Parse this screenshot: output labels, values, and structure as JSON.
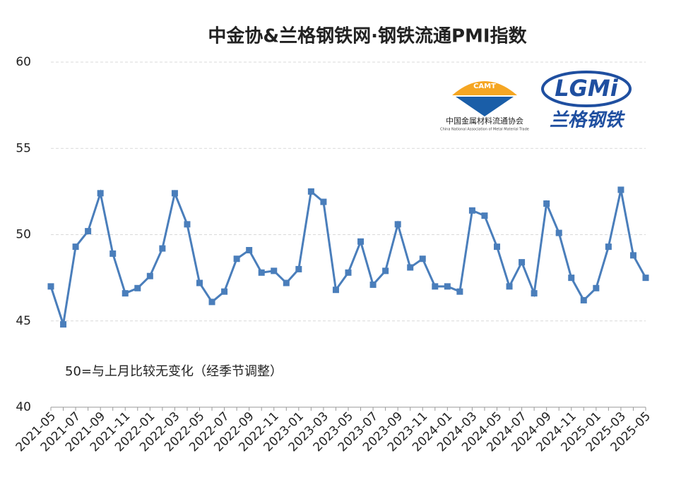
{
  "chart_data": {
    "type": "line",
    "title": "中金协&兰格钢铁网·钢铁流通PMI指数",
    "annotation": "50=与上月比较无变化（经季节调整）",
    "logos": {
      "camt_mark": "CAMT",
      "camt_name": "中国金属材料流通协会",
      "camt_name_en": "China National Association of Metal Material Trade",
      "lgmi_mark": "LGMi",
      "lgmi_name": "兰格钢铁"
    },
    "categories": [
      "2021-05",
      null,
      "2021-07",
      null,
      "2021-09",
      null,
      "2021-11",
      null,
      "2022-01",
      null,
      "2022-03",
      null,
      "2022-05",
      null,
      "2022-07",
      null,
      "2022-09",
      null,
      "2022-11",
      null,
      "2023-01",
      null,
      "2023-03",
      null,
      "2023-05",
      null,
      "2023-07",
      null,
      "2023-09",
      null,
      "2023-11",
      null,
      "2024-01",
      null,
      "2024-03",
      null,
      "2024-05",
      null,
      "2024-07",
      null,
      "2024-09",
      null,
      "2024-11",
      null,
      "2025-01",
      null,
      "2025-03",
      null,
      "2025-05"
    ],
    "series": [
      {
        "name": "钢铁流通PMI",
        "color": "#4a7ebb",
        "values": [
          47.0,
          44.8,
          49.3,
          50.2,
          52.4,
          48.9,
          46.6,
          46.9,
          47.6,
          49.2,
          52.4,
          50.6,
          47.2,
          46.1,
          46.7,
          48.6,
          49.1,
          47.8,
          47.9,
          47.2,
          48.0,
          52.5,
          51.9,
          46.8,
          47.8,
          49.6,
          47.1,
          47.9,
          50.6,
          48.1,
          48.6,
          47.0,
          47.0,
          46.7,
          51.4,
          51.1,
          49.3,
          47.0,
          48.4,
          46.6,
          51.8,
          50.1,
          47.5,
          46.2,
          46.9,
          49.3,
          52.6,
          48.8,
          47.5
        ]
      }
    ],
    "ylim": [
      40,
      60
    ],
    "yticks": [
      40,
      45,
      50,
      55,
      60
    ],
    "grid": true
  }
}
